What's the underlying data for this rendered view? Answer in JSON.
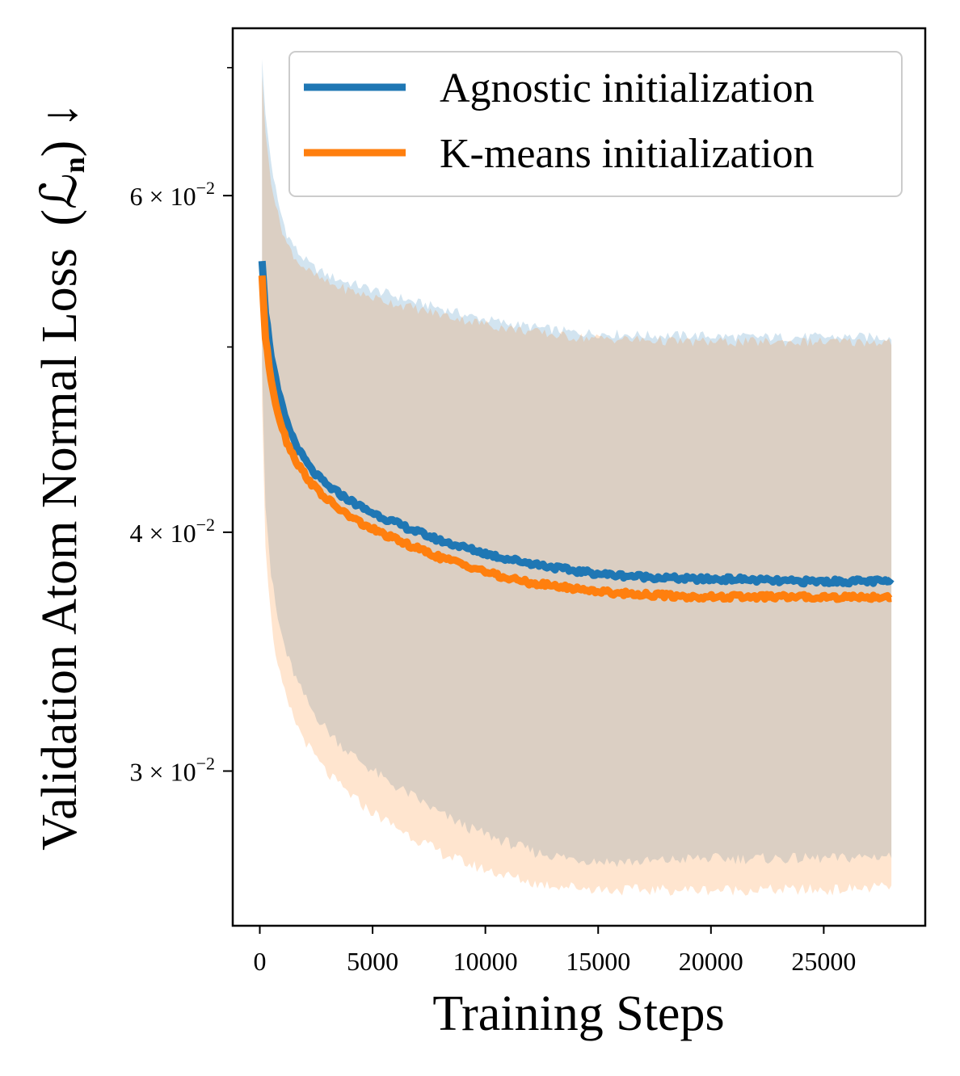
{
  "chart_data": {
    "type": "line",
    "title": "",
    "xlabel": "Training Steps",
    "ylabel": "Validation Atom Normal Loss",
    "ylabel_math": "(ℒ",
    "ylabel_sub": "n",
    "ylabel_tail": ") ↓",
    "yscale": "log",
    "xlim": [
      -1200,
      29500
    ],
    "ylim": [
      0.0249,
      0.0734
    ],
    "x_ticks": [
      0,
      5000,
      10000,
      15000,
      20000,
      25000
    ],
    "x_tick_labels": [
      "0",
      "5000",
      "10000",
      "15000",
      "20000",
      "25000"
    ],
    "y_ticks_major": [
      {
        "value": 0.06,
        "mantissa": "6 × 10",
        "exp": "−2"
      },
      {
        "value": 0.04,
        "mantissa": "4 × 10",
        "exp": "−2"
      },
      {
        "value": 0.03,
        "mantissa": "3 × 10",
        "exp": "−2"
      }
    ],
    "y_ticks_minor": [
      0.05,
      0.07
    ],
    "legend": {
      "placement": "top-right"
    },
    "series": [
      {
        "name": "Agnostic initialization",
        "color": "#1f77b4",
        "band_color": "#1f77b4",
        "x": [
          100,
          250,
          500,
          800,
          1200,
          1700,
          2300,
          3000,
          3800,
          4700,
          5700,
          6800,
          8000,
          9300,
          10700,
          12200,
          13800,
          15500,
          17300,
          19200,
          21200,
          23300,
          25500,
          28000
        ],
        "mean": [
          0.0556,
          0.0522,
          0.0495,
          0.0474,
          0.0456,
          0.0442,
          0.0431,
          0.0423,
          0.0417,
          0.0411,
          0.0406,
          0.0401,
          0.0396,
          0.0392,
          0.0388,
          0.0385,
          0.0382,
          0.038,
          0.0379,
          0.0378,
          0.0378,
          0.0377,
          0.0377,
          0.0377
        ],
        "upper": [
          0.071,
          0.066,
          0.0625,
          0.0595,
          0.0573,
          0.056,
          0.0551,
          0.0545,
          0.0541,
          0.0537,
          0.0533,
          0.0528,
          0.0524,
          0.0519,
          0.0515,
          0.0512,
          0.0509,
          0.0508,
          0.0507,
          0.0507,
          0.0506,
          0.0506,
          0.0506,
          0.0506
        ],
        "lower": [
          0.049,
          0.0415,
          0.038,
          0.036,
          0.0345,
          0.0333,
          0.0323,
          0.0315,
          0.0308,
          0.0302,
          0.0296,
          0.0291,
          0.0285,
          0.028,
          0.0276,
          0.0272,
          0.027,
          0.0269,
          0.0269,
          0.027,
          0.027,
          0.027,
          0.027,
          0.0271
        ]
      },
      {
        "name": "K-means initialization",
        "color": "#ff7f0e",
        "band_color": "#ff7f0e",
        "x": [
          100,
          250,
          500,
          800,
          1200,
          1700,
          2300,
          3000,
          3800,
          4700,
          5700,
          6800,
          8000,
          9300,
          10700,
          12200,
          13800,
          15500,
          17300,
          19200,
          21200,
          23300,
          25500,
          28000
        ],
        "mean": [
          0.0545,
          0.0505,
          0.0481,
          0.0462,
          0.0446,
          0.0434,
          0.0424,
          0.0416,
          0.0409,
          0.0403,
          0.0398,
          0.0393,
          0.0388,
          0.0384,
          0.0379,
          0.0376,
          0.0374,
          0.0372,
          0.0371,
          0.037,
          0.037,
          0.037,
          0.037,
          0.037
        ],
        "upper": [
          0.0695,
          0.0645,
          0.0612,
          0.0586,
          0.0566,
          0.0554,
          0.0546,
          0.054,
          0.0536,
          0.0532,
          0.0528,
          0.0524,
          0.052,
          0.0516,
          0.0512,
          0.0509,
          0.0506,
          0.0505,
          0.0504,
          0.0503,
          0.0503,
          0.0503,
          0.0503,
          0.0503
        ],
        "lower": [
          0.047,
          0.0395,
          0.036,
          0.034,
          0.0326,
          0.0316,
          0.0307,
          0.0299,
          0.0293,
          0.0287,
          0.0282,
          0.0277,
          0.0272,
          0.0268,
          0.0265,
          0.0262,
          0.0261,
          0.026,
          0.026,
          0.026,
          0.026,
          0.026,
          0.026,
          0.0261
        ]
      }
    ]
  }
}
